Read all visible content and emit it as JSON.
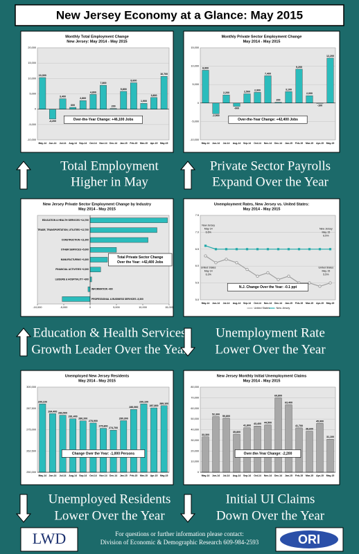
{
  "title": "New Jersey Economy at a Glance: May 2015",
  "chart_data": [
    {
      "type": "bar",
      "title": "Monthly Total Employment Change",
      "subtitle": "New Jersey: May 2014 - May 2015",
      "categories": [
        "May-14",
        "Jun-14",
        "Jul-14",
        "Aug-14",
        "Sep-14",
        "Oct-14",
        "Nov-14",
        "Dec-14",
        "Jan-15",
        "Feb-15",
        "Mar-15",
        "Apr-15",
        "May-15"
      ],
      "values": [
        10300,
        -3200,
        3400,
        600,
        2800,
        4800,
        7800,
        200,
        5800,
        8600,
        1900,
        3800,
        10700
      ],
      "value_labels": [
        "10,300",
        "-3,200",
        "3,400",
        "600",
        "2,800",
        "4,800",
        "7,800",
        "200",
        "5,800",
        "8,600",
        "1,900",
        "3,800",
        "10,700"
      ],
      "color": "#2bbcbc",
      "ylim": [
        -10000,
        20000
      ],
      "yticks": [
        {
          "value": -10000,
          "label": "-10,000"
        },
        {
          "value": -5000,
          "label": "-5,000"
        },
        0,
        {
          "value": 5000,
          "label": "5,000"
        },
        {
          "value": 10000,
          "label": "10,000"
        },
        {
          "value": 15000,
          "label": "15,000"
        },
        {
          "value": 20000,
          "label": "20,000"
        }
      ],
      "annotation": "Over-the-Year Change: +46,100 Jobs",
      "caption": [
        "Total Employment",
        "Higher in May"
      ],
      "arrow": "up"
    },
    {
      "type": "bar",
      "title": "Monthly Private Sector Employment Change",
      "subtitle": "May 2014 - May 2015",
      "categories": [
        "May-14",
        "Jun-14",
        "Jul-14",
        "Aug-14",
        "Sep-14",
        "Oct-14",
        "Nov-14",
        "Dec-14",
        "Jan-15",
        "Feb-15",
        "Mar-15",
        "Apr-15",
        "May-15"
      ],
      "values": [
        8900,
        -2900,
        2200,
        -900,
        2500,
        2900,
        7400,
        200,
        3100,
        9200,
        2000,
        -100,
        12200
      ],
      "value_labels": [
        "8,900",
        "-2,900",
        "2,200",
        "-900",
        "2,500",
        "2,900",
        "7,400",
        "200",
        "3,100",
        "9,200",
        "2,000",
        "-100",
        "12,200"
      ],
      "color": "#2bbcbc",
      "ylim": [
        -10000,
        15000
      ],
      "yticks": [
        {
          "value": -10000,
          "label": "-10,000"
        },
        {
          "value": -5000,
          "label": "-5,000"
        },
        0,
        {
          "value": 5000,
          "label": "5,000"
        },
        {
          "value": 10000,
          "label": "10,000"
        },
        {
          "value": 15000,
          "label": "15,000"
        }
      ],
      "annotation": "Over-the-Year Change: +42,400 Jobs",
      "caption": [
        "Private Sector Payrolls",
        "Expand Over the Year"
      ],
      "arrow": "up"
    },
    {
      "type": "barh",
      "title": "New Jersey Private Sector Employment Change by Industry",
      "subtitle": "May 2014 - May 2015",
      "categories": [
        "EDUCATION & HEALTH SERVICES +14,700",
        "TRADE, TRANSPORTATION, UTILITIES +12,700",
        "CONSTRUCTION +11,000",
        "OTHER SERVICES +5,000",
        "MANUFACTURING +3,300",
        "FINANCIAL ACTIVITIES +2,000",
        "LEISURE & HOSPITALITY +300",
        "INFORMATION -400",
        "PROFESSIONAL & BUSINESS SERVICES -5,300"
      ],
      "values": [
        14700,
        12700,
        11000,
        5000,
        3300,
        2000,
        300,
        -400,
        -5300
      ],
      "color": "#2bbcbc",
      "xlim": [
        -10000,
        15000
      ],
      "xticks": [
        {
          "value": -10000,
          "label": "-10,000"
        },
        {
          "value": -5000,
          "label": "-5,000"
        },
        0,
        {
          "value": 5000,
          "label": "5,000"
        },
        {
          "value": 10000,
          "label": "10,000"
        },
        {
          "value": 15000,
          "label": "15,000"
        }
      ],
      "annotation": [
        "Total Private Sector Change",
        "Over the Year: +42,400 Jobs"
      ],
      "caption": [
        "Education & Health Services",
        "Growth Leader Over the Year"
      ],
      "arrow": "up"
    },
    {
      "type": "line",
      "title": "Unemployment Rates, New Jersey vs. United States:",
      "subtitle": "May 2014 - May 2015",
      "categories": [
        "May-14",
        "Jun-14",
        "Jul-14",
        "Aug-14",
        "Sep-14",
        "Oct-14",
        "Nov-14",
        "Dec-14",
        "Jan-15",
        "Feb-15",
        "Mar-15",
        "Apr-15",
        "May-15"
      ],
      "series": [
        {
          "name": "United States",
          "color": "#a0a0a0",
          "values": [
            6.3,
            6.1,
            6.2,
            6.1,
            5.9,
            5.7,
            5.8,
            5.6,
            5.7,
            5.5,
            5.5,
            5.4,
            5.5
          ]
        },
        {
          "name": "New Jersey",
          "color": "#1fa8a8",
          "values": [
            6.6,
            6.5,
            6.5,
            6.5,
            6.5,
            6.5,
            6.5,
            6.5,
            6.5,
            6.5,
            6.5,
            6.5,
            6.5
          ]
        }
      ],
      "ylim": [
        5.0,
        7.5
      ],
      "yticks": [
        {
          "value": 5.0,
          "label": "5.0"
        },
        5.5,
        {
          "value": 6.0,
          "label": "6.0"
        },
        6.5,
        {
          "value": 7.0,
          "label": "7.0"
        },
        7.5
      ],
      "grid": true,
      "point_notes": [
        [
          "New Jersey",
          "May 14",
          "6.6%"
        ],
        [
          "United States",
          "May 14",
          "6.3%"
        ],
        [
          "New Jersey",
          "May 15",
          "6.5%"
        ],
        [
          "United States",
          "May 15",
          "5.5%"
        ]
      ],
      "annotation": "N.J. Change Over the Year: -0.1 ppt",
      "legend": "bottom",
      "caption": [
        "Unemployment Rate",
        "Lower Over the Year"
      ],
      "arrow": "down"
    },
    {
      "type": "bar",
      "title": "Unemployed New Jersey Residents",
      "subtitle": "May 2014 - May 2015",
      "categories": [
        "May-14",
        "Jun-14",
        "Jul-14",
        "Aug-14",
        "Sep-14",
        "Oct-14",
        "Nov-14",
        "Dec-14",
        "Jan-15",
        "Feb-15",
        "Mar-15",
        "Apr-15",
        "May-15"
      ],
      "values": [
        290100,
        284400,
        283500,
        281400,
        280200,
        278900,
        275800,
        274700,
        280300,
        286900,
        290100,
        287800,
        289100
      ],
      "value_labels": [
        "290,100",
        "284,400",
        "283,500",
        "281,400",
        "280,200",
        "278,900",
        "275,800",
        "274,700",
        "280,300",
        "286,900",
        "290,100",
        "287,800",
        "289,100"
      ],
      "color": "#2bbcbc",
      "ylim": [
        250000,
        300000
      ],
      "yticks": [
        {
          "value": 250000,
          "label": "250,000"
        },
        {
          "value": 262500,
          "label": "262,500"
        },
        {
          "value": 275000,
          "label": "275,000"
        },
        {
          "value": 287500,
          "label": "287,500"
        },
        {
          "value": 300000,
          "label": "300,000"
        }
      ],
      "annotation": "Change Over the Year: -1,000 Persons",
      "caption": [
        "Unemployed Residents",
        "Lower Over the Year"
      ],
      "arrow": "down"
    },
    {
      "type": "bar",
      "title": "New Jersey Monthly Initial Unemployment Claims",
      "subtitle": "May 2014 - May 2015",
      "categories": [
        "May-14",
        "Jun-14",
        "Jul-14",
        "Aug-14",
        "Sep-14",
        "Oct-14",
        "Nov-14",
        "Dec-14",
        "Jan-15",
        "Feb-15",
        "Mar-15",
        "Apr-15",
        "May-15"
      ],
      "values": [
        33300,
        52300,
        50800,
        35800,
        41800,
        43400,
        44500,
        69800,
        63400,
        41700,
        38600,
        45900,
        31100
      ],
      "value_labels": [
        "33,300",
        "52,300",
        "50,800",
        "35,800",
        "41,800",
        "43,400",
        "44,500",
        "69,800",
        "63,400",
        "41,700",
        "38,600",
        "45,900",
        "31,100"
      ],
      "color": "#a8a8a8",
      "ylim": [
        0,
        80000
      ],
      "yticks": [
        0,
        {
          "value": 10000,
          "label": "10,000"
        },
        {
          "value": 20000,
          "label": "20,000"
        },
        {
          "value": 30000,
          "label": "30,000"
        },
        {
          "value": 40000,
          "label": "40,000"
        },
        {
          "value": 50000,
          "label": "50,000"
        },
        {
          "value": 60000,
          "label": "60,000"
        },
        {
          "value": 70000,
          "label": "70,000"
        },
        {
          "value": 80000,
          "label": "80,000"
        }
      ],
      "annotation": "Over-the-Year Change: -2,200",
      "caption": [
        "Initial UI Claims",
        "Down Over the Year"
      ],
      "arrow": "down"
    }
  ],
  "footer": {
    "lines": [
      "For questions or further information please contact:",
      "Division of Economic & Demographic Research 609-984-2593"
    ],
    "logos": [
      "LWD",
      "ORI"
    ]
  }
}
